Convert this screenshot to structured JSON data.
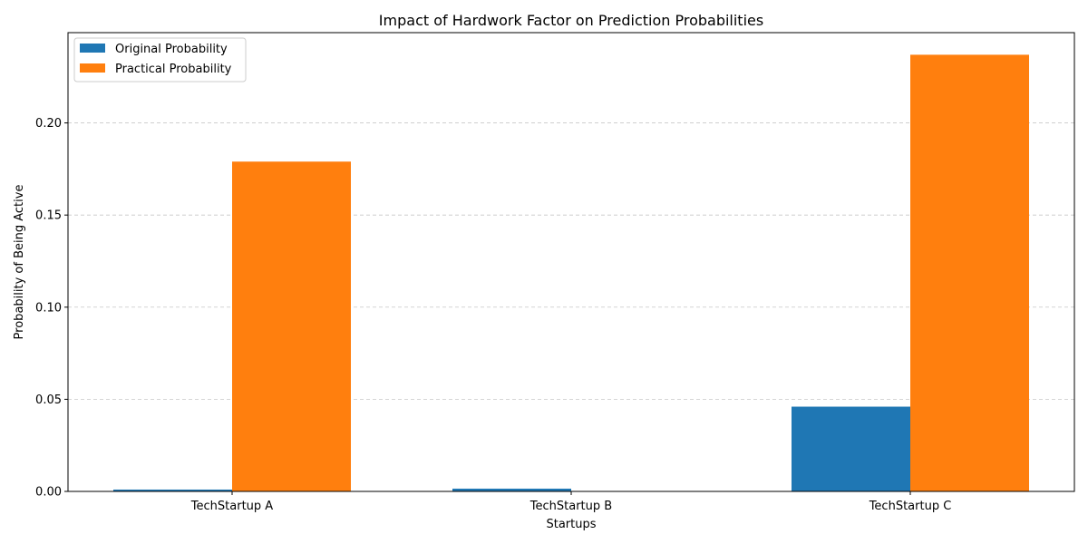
{
  "chart_data": {
    "type": "bar",
    "title": "Impact of Hardwork Factor on Prediction Probabilities",
    "xlabel": "Startups",
    "ylabel": "Probability of Being Active",
    "categories": [
      "TechStartup A",
      "TechStartup B",
      "TechStartup C"
    ],
    "series": [
      {
        "name": "Original Probability",
        "color": "#1f77b4",
        "values": [
          0.001,
          0.0015,
          0.046
        ]
      },
      {
        "name": "Practical Probability",
        "color": "#ff7f0e",
        "values": [
          0.179,
          0.0,
          0.237
        ]
      }
    ],
    "ylim": [
      0,
      0.249
    ],
    "yticks": [
      0.0,
      0.05,
      0.1,
      0.15,
      0.2
    ],
    "ytick_labels": [
      "0.00",
      "0.05",
      "0.10",
      "0.15",
      "0.20"
    ],
    "grid": "y-dashed",
    "legend": "top-left"
  }
}
